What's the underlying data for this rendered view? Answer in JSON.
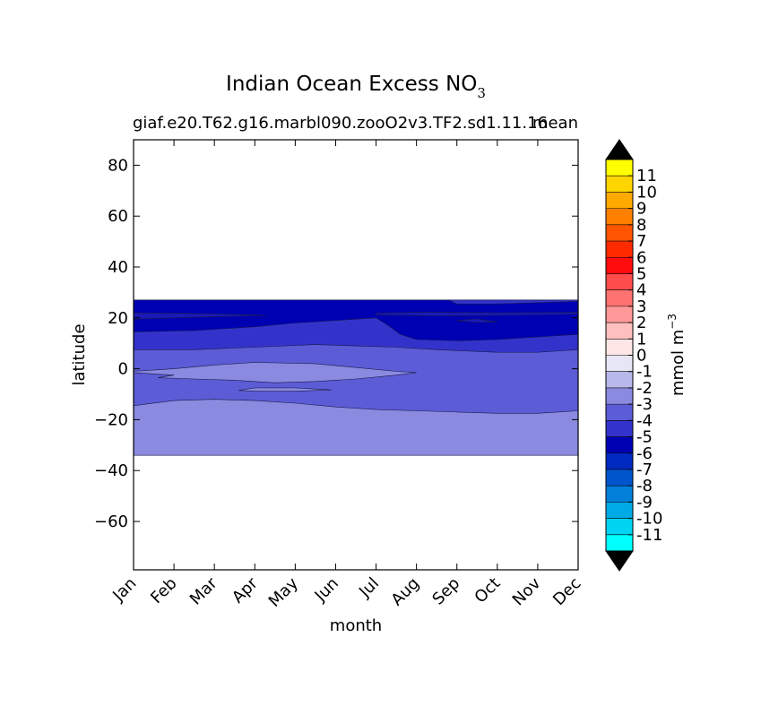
{
  "chart_data": {
    "type": "heatmap",
    "title": "Indian Ocean Excess NO",
    "title_subscript": "3",
    "subtitle_left": "giaf.e20.T62.g16.marbl090.zooO2v3.TF2.sd1.11.16",
    "subtitle_right": "mean",
    "xlabel": "month",
    "ylabel": "latitude",
    "x_categories": [
      "Jan",
      "Feb",
      "Mar",
      "Apr",
      "May",
      "Jun",
      "Jul",
      "Aug",
      "Sep",
      "Oct",
      "Nov",
      "Dec"
    ],
    "yticks": [
      80,
      60,
      40,
      20,
      0,
      -20,
      -40,
      -60
    ],
    "ylim": [
      -79,
      90
    ],
    "data_lat_range": [
      -34,
      27
    ],
    "colorbar": {
      "label": "mmol m",
      "label_sup": "−3",
      "extend": "both",
      "extend_color": "#000000",
      "levels": [
        -11,
        -10,
        -9,
        -8,
        -7,
        -6,
        -5,
        -4,
        -3,
        -2,
        -1,
        0,
        1,
        2,
        3,
        4,
        5,
        6,
        7,
        8,
        9,
        10,
        11
      ],
      "tick_labels": [
        "-11",
        "-10",
        "-9",
        "-8",
        "-7",
        "-6",
        "-5",
        "-4",
        "-3",
        "-2",
        "-1",
        "0",
        "1",
        "2",
        "3",
        "4",
        "5",
        "6",
        "7",
        "8",
        "9",
        "10",
        "11"
      ],
      "colors": [
        "#00ffff",
        "#00d4f2",
        "#00aae5",
        "#0080d9",
        "#0055cc",
        "#002ac0",
        "#0000b3",
        "#3333cc",
        "#5c5cd6",
        "#8a8ae0",
        "#b8b8eb",
        "#e6e6f5",
        "#ffe6e6",
        "#ffbfbf",
        "#ff9999",
        "#ff7272",
        "#ff4c4c",
        "#ff0d0d",
        "#ff2b00",
        "#ff5500",
        "#ff8000",
        "#ffaa00",
        "#ffd500",
        "#ffff00"
      ]
    },
    "contour_regions": [
      {
        "level": -3,
        "color": "#8a8ae0",
        "lat_min": -15,
        "lat_max": 9,
        "note": "near-equatorial band"
      },
      {
        "level": -2,
        "color": "#b8b8eb",
        "lat_min": -34,
        "lat_max": -12,
        "note": "southern band"
      },
      {
        "level": -4,
        "color": "#5c5cd6",
        "lat_min": 7,
        "lat_max": 17
      },
      {
        "level": -5,
        "color": "#3333cc",
        "lat_min": 17,
        "lat_max": 27
      }
    ]
  }
}
